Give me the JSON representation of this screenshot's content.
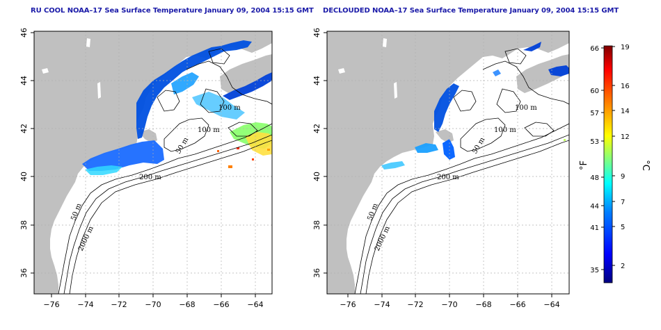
{
  "left_panel": {
    "title": "RU COOL NOAA–17 Sea Surface Temperature January 09, 2004 15:15 GMT",
    "contour_labels": [
      "100 m",
      "100 m",
      "50 m",
      "200 m",
      "50 m",
      "2000 m"
    ]
  },
  "right_panel": {
    "title": "DECLOUDED NOAA–17 Sea Surface Temperature January 09, 2004 15:15 GMT",
    "contour_labels": [
      "100 m",
      "100 m",
      "50 m",
      "200 m",
      "50 m",
      "2000 m"
    ]
  },
  "axes": {
    "lon_ticks": [
      "−76",
      "−74",
      "−72",
      "−70",
      "−68",
      "−66",
      "−64"
    ],
    "lat_ticks": [
      "36",
      "38",
      "40",
      "42",
      "44",
      "46"
    ],
    "lon_range": [
      -77,
      -63
    ],
    "lat_range": [
      35,
      46
    ]
  },
  "colorbar": {
    "fahrenheit_unit": "°F",
    "celsius_unit": "°C",
    "fahrenheit_ticks": [
      "66",
      "60",
      "57",
      "53",
      "48",
      "44",
      "41",
      "35"
    ],
    "celsius_ticks": [
      "19",
      "16",
      "14",
      "12",
      "9",
      "7",
      "5",
      "2"
    ],
    "colors": [
      "#00007f",
      "#0000ff",
      "#0080ff",
      "#00ffff",
      "#80ff80",
      "#ffff00",
      "#ff8000",
      "#ff0000",
      "#7f0000"
    ]
  },
  "colors": {
    "land": "#c0c0c0",
    "title": "#1a1aa8",
    "grid": "#b0b0b0"
  }
}
